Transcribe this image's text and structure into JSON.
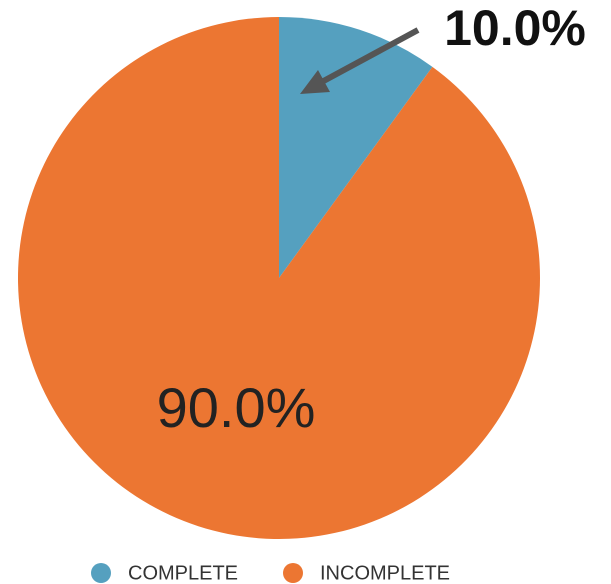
{
  "chart_data": {
    "type": "pie",
    "categories": [
      "COMPLETE",
      "INCOMPLETE"
    ],
    "values": [
      10,
      90
    ],
    "value_labels": [
      "10.0%",
      "90.0%"
    ],
    "colors": [
      "#55a0bf",
      "#ec7632"
    ],
    "legend": "bottom"
  }
}
